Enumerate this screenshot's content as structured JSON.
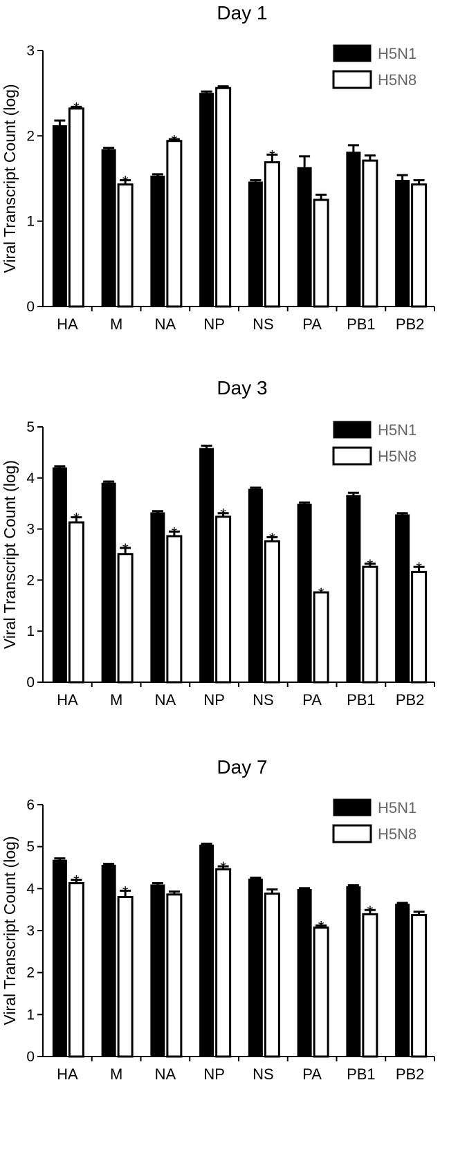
{
  "chart_data": [
    {
      "type": "bar",
      "title": "Day 1",
      "ylabel": "Viral Transcript Count (log)",
      "ylim": [
        0,
        3
      ],
      "yticks": [
        0,
        1,
        2,
        3
      ],
      "categories": [
        "HA",
        "M",
        "NA",
        "NP",
        "NS",
        "PA",
        "PB1",
        "PB2"
      ],
      "series": [
        {
          "name": "H5N1",
          "values": [
            2.12,
            1.84,
            1.53,
            2.5,
            1.46,
            1.63,
            1.81,
            1.48
          ],
          "errors": [
            0.06,
            0.02,
            0.02,
            0.02,
            0.02,
            0.13,
            0.08,
            0.06
          ],
          "significant": [
            false,
            false,
            false,
            false,
            false,
            false,
            false,
            false
          ]
        },
        {
          "name": "H5N8",
          "values": [
            2.32,
            1.43,
            1.94,
            2.56,
            1.69,
            1.25,
            1.71,
            1.43
          ],
          "errors": [
            0.02,
            0.05,
            0.02,
            0.02,
            0.09,
            0.06,
            0.06,
            0.05
          ],
          "significant": [
            true,
            true,
            true,
            false,
            true,
            false,
            false,
            false
          ]
        }
      ],
      "legend": "top-right",
      "significance_mark": "*"
    },
    {
      "type": "bar",
      "title": "Day 3",
      "ylabel": "Viral Transcript Count (log)",
      "ylim": [
        0,
        5
      ],
      "yticks": [
        0,
        1,
        2,
        3,
        4,
        5
      ],
      "categories": [
        "HA",
        "M",
        "NA",
        "NP",
        "NS",
        "PA",
        "PB1",
        "PB2"
      ],
      "series": [
        {
          "name": "H5N1",
          "values": [
            4.2,
            3.9,
            3.32,
            4.58,
            3.78,
            3.49,
            3.66,
            3.28
          ],
          "errors": [
            0.03,
            0.03,
            0.03,
            0.05,
            0.03,
            0.03,
            0.05,
            0.03
          ],
          "significant": [
            false,
            false,
            false,
            false,
            false,
            false,
            false,
            false
          ]
        },
        {
          "name": "H5N8",
          "values": [
            3.13,
            2.51,
            2.86,
            3.24,
            2.76,
            1.76,
            2.26,
            2.16
          ],
          "errors": [
            0.1,
            0.12,
            0.09,
            0.07,
            0.08,
            0.0,
            0.06,
            0.1
          ],
          "significant": [
            true,
            true,
            true,
            true,
            true,
            true,
            true,
            true
          ]
        }
      ],
      "legend": "top-right",
      "significance_mark": "*"
    },
    {
      "type": "bar",
      "title": "Day 7",
      "ylabel": "Viral Transcript Count (log)",
      "ylim": [
        0,
        6
      ],
      "yticks": [
        0,
        1,
        2,
        3,
        4,
        5,
        6
      ],
      "categories": [
        "HA",
        "M",
        "NA",
        "NP",
        "NS",
        "PA",
        "PB1",
        "PB2"
      ],
      "series": [
        {
          "name": "H5N1",
          "values": [
            4.68,
            4.56,
            4.09,
            5.04,
            4.23,
            3.98,
            4.05,
            3.63
          ],
          "errors": [
            0.04,
            0.03,
            0.04,
            0.03,
            0.03,
            0.03,
            0.03,
            0.03
          ],
          "significant": [
            false,
            false,
            false,
            false,
            false,
            false,
            false,
            false
          ]
        },
        {
          "name": "H5N8",
          "values": [
            4.13,
            3.8,
            3.86,
            4.46,
            3.88,
            3.07,
            3.39,
            3.37
          ],
          "errors": [
            0.08,
            0.15,
            0.07,
            0.07,
            0.1,
            0.05,
            0.1,
            0.08
          ],
          "significant": [
            true,
            true,
            false,
            true,
            false,
            true,
            true,
            false
          ]
        }
      ],
      "legend": "top-right",
      "significance_mark": "*"
    }
  ],
  "colors": {
    "h5n1_fill": "#000000",
    "h5n8_fill": "#ffffff",
    "axis": "#000000"
  }
}
